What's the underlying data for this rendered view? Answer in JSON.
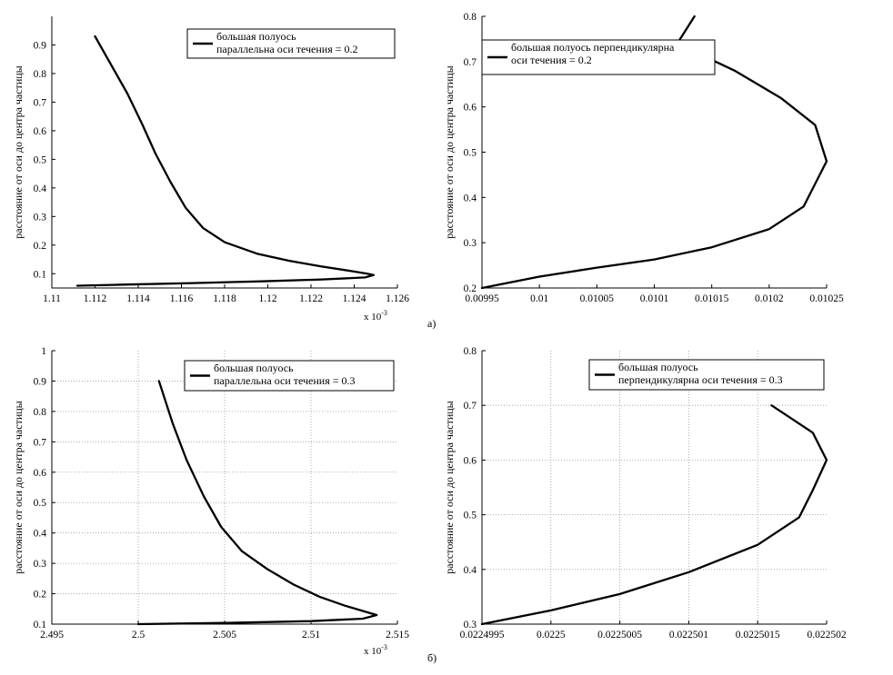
{
  "panel_labels": [
    "а)",
    "б)"
  ],
  "chart_data": [
    {
      "type": "line",
      "ylabel": "расстояние от оси до центра частицы",
      "xlim": [
        1.11,
        1.126
      ],
      "ylim": [
        0.05,
        1.0
      ],
      "x_multiplier": "x 10",
      "x_multiplier_exp": "-3",
      "xticks": [
        1.11,
        1.112,
        1.114,
        1.116,
        1.118,
        1.12,
        1.122,
        1.124,
        1.126
      ],
      "xtick_labels": [
        "1.11",
        "1.112",
        "1.114",
        "1.116",
        "1.118",
        "1.12",
        "1.122",
        "1.124",
        "1.126"
      ],
      "yticks": [
        0.1,
        0.2,
        0.3,
        0.4,
        0.5,
        0.6,
        0.7,
        0.8,
        0.9
      ],
      "ytick_labels": [
        "0.1",
        "0.2",
        "0.3",
        "0.4",
        "0.5",
        "0.6",
        "0.7",
        "0.8",
        "0.9"
      ],
      "grid": false,
      "legend": {
        "position": "top-right",
        "lines": [
          "большая полуось",
          "параллельна оси течения = 0.2"
        ]
      },
      "series": [
        {
          "name": "большая полуось параллельна оси течения = 0.2",
          "x": [
            1.11118,
            1.1135,
            1.1165,
            1.1195,
            1.1225,
            1.1245,
            1.1249,
            1.1246,
            1.1238,
            1.1225,
            1.121,
            1.1195,
            1.118,
            1.117,
            1.1162,
            1.1155,
            1.1148,
            1.1142,
            1.1135,
            1.1126,
            1.112
          ],
          "y": [
            0.058,
            0.062,
            0.067,
            0.073,
            0.08,
            0.087,
            0.095,
            0.1,
            0.11,
            0.125,
            0.145,
            0.17,
            0.21,
            0.26,
            0.33,
            0.42,
            0.52,
            0.62,
            0.73,
            0.85,
            0.93
          ]
        }
      ]
    },
    {
      "type": "line",
      "ylabel": "расстояние от оси до центра частицы",
      "xlim": [
        0.00995,
        0.01025
      ],
      "ylim": [
        0.2,
        0.8
      ],
      "xticks": [
        0.00995,
        0.01,
        0.01005,
        0.0101,
        0.01015,
        0.0102,
        0.01025
      ],
      "xtick_labels": [
        "0.00995",
        "0.01",
        "0.01005",
        "0.0101",
        "0.01015",
        "0.0102",
        "0.01025"
      ],
      "yticks": [
        0.2,
        0.3,
        0.4,
        0.5,
        0.6,
        0.7,
        0.8
      ],
      "ytick_labels": [
        "0.2",
        "0.3",
        "0.4",
        "0.5",
        "0.6",
        "0.7",
        "0.8"
      ],
      "grid": false,
      "legend": {
        "position": "top-left",
        "lines": [
          "большая полуось перпендикулярна",
          "оси течения = 0.2"
        ]
      },
      "series": [
        {
          "name": "большая полуось перпендикулярна оси течения = 0.2",
          "x": [
            0.00995,
            0.01,
            0.01005,
            0.0101,
            0.01015,
            0.0102,
            0.01023,
            0.01025,
            0.01024,
            0.01021,
            0.01017,
            0.01012,
            0.010135
          ],
          "y": [
            0.2,
            0.225,
            0.245,
            0.263,
            0.29,
            0.33,
            0.38,
            0.48,
            0.56,
            0.62,
            0.68,
            0.74,
            0.8
          ]
        }
      ]
    },
    {
      "type": "line",
      "ylabel": "расстояние от оси до центра частицы",
      "xlim": [
        2.495,
        2.515
      ],
      "ylim": [
        0.1,
        1.0
      ],
      "x_multiplier": "x 10",
      "x_multiplier_exp": "-3",
      "xticks": [
        2.495,
        2.5,
        2.505,
        2.51,
        2.515
      ],
      "xtick_labels": [
        "2.495",
        "2.5",
        "2.505",
        "2.51",
        "2.515"
      ],
      "yticks": [
        0.1,
        0.2,
        0.3,
        0.4,
        0.5,
        0.6,
        0.7,
        0.8,
        0.9,
        1
      ],
      "ytick_labels": [
        "0.1",
        "0.2",
        "0.3",
        "0.4",
        "0.5",
        "0.6",
        "0.7",
        "0.8",
        "0.9",
        "1"
      ],
      "grid": true,
      "legend": {
        "position": "top-right",
        "lines": [
          "большая полуось",
          "параллельна оси течения = 0.3"
        ]
      },
      "series": [
        {
          "name": "большая полуось параллельна оси течения = 0.3",
          "x": [
            2.5,
            2.505,
            2.51,
            2.513,
            2.5138,
            2.5132,
            2.512,
            2.5105,
            2.509,
            2.5075,
            2.506,
            2.5048,
            2.5038,
            2.5028,
            2.502,
            2.5012
          ],
          "y": [
            0.1,
            0.104,
            0.11,
            0.118,
            0.13,
            0.14,
            0.16,
            0.19,
            0.23,
            0.28,
            0.34,
            0.42,
            0.52,
            0.64,
            0.76,
            0.9
          ]
        }
      ]
    },
    {
      "type": "line",
      "ylabel": "расстояние от оси до центра частицы",
      "xlim": [
        0.0224995,
        0.022502
      ],
      "ylim": [
        0.3,
        0.8
      ],
      "xticks": [
        0.0224995,
        0.0225,
        0.0225005,
        0.022501,
        0.0225015,
        0.022502
      ],
      "xtick_labels": [
        "0.0224995",
        "0.0225",
        "0.0225005",
        "0.022501",
        "0.0225015",
        "0.022502"
      ],
      "yticks": [
        0.3,
        0.4,
        0.5,
        0.6,
        0.7,
        0.8
      ],
      "ytick_labels": [
        "0.3",
        "0.4",
        "0.5",
        "0.6",
        "0.7",
        "0.8"
      ],
      "grid": true,
      "legend": {
        "position": "top-right",
        "lines": [
          "большая полуось",
          "перпендикулярна оси течения = 0.3"
        ]
      },
      "series": [
        {
          "name": "большая полуось перпендикулярна оси течения = 0.3",
          "x": [
            0.0224995,
            0.0225,
            0.0225005,
            0.022501,
            0.0225015,
            0.0225018,
            0.0225019,
            0.022502,
            0.0225019,
            0.0225016
          ],
          "y": [
            0.3,
            0.325,
            0.355,
            0.395,
            0.445,
            0.495,
            0.545,
            0.6,
            0.65,
            0.7
          ]
        }
      ]
    }
  ]
}
